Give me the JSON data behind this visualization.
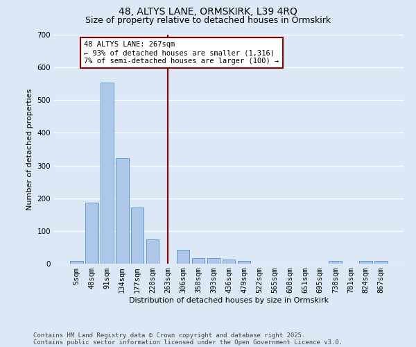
{
  "title_line1": "48, ALTYS LANE, ORMSKIRK, L39 4RQ",
  "title_line2": "Size of property relative to detached houses in Ormskirk",
  "xlabel": "Distribution of detached houses by size in Ormskirk",
  "ylabel": "Number of detached properties",
  "bar_labels": [
    "5sqm",
    "48sqm",
    "91sqm",
    "134sqm",
    "177sqm",
    "220sqm",
    "263sqm",
    "306sqm",
    "350sqm",
    "393sqm",
    "436sqm",
    "479sqm",
    "522sqm",
    "565sqm",
    "608sqm",
    "651sqm",
    "695sqm",
    "738sqm",
    "781sqm",
    "824sqm",
    "867sqm"
  ],
  "bar_values": [
    8,
    187,
    553,
    322,
    172,
    75,
    0,
    43,
    17,
    16,
    13,
    8,
    0,
    0,
    0,
    0,
    0,
    9,
    0,
    8,
    8
  ],
  "bar_color": "#aec6e8",
  "bar_edge_color": "#5b9bd5",
  "vline_color": "#8b0000",
  "vline_x_index": 6,
  "annotation_text_line1": "48 ALTYS LANE: 267sqm",
  "annotation_text_line2": "← 93% of detached houses are smaller (1,316)",
  "annotation_text_line3": "7% of semi-detached houses are larger (100) →",
  "annotation_box_color": "#ffffff",
  "annotation_box_edge": "#8b0000",
  "ylim": [
    0,
    700
  ],
  "yticks": [
    0,
    100,
    200,
    300,
    400,
    500,
    600,
    700
  ],
  "background_color": "#dce8f5",
  "grid_color": "#ffffff",
  "footer_line1": "Contains HM Land Registry data © Crown copyright and database right 2025.",
  "footer_line2": "Contains public sector information licensed under the Open Government Licence v3.0.",
  "title_fontsize": 10,
  "subtitle_fontsize": 9,
  "axis_label_fontsize": 8,
  "tick_fontsize": 7.5,
  "annotation_fontsize": 7.5,
  "footer_fontsize": 6.5
}
